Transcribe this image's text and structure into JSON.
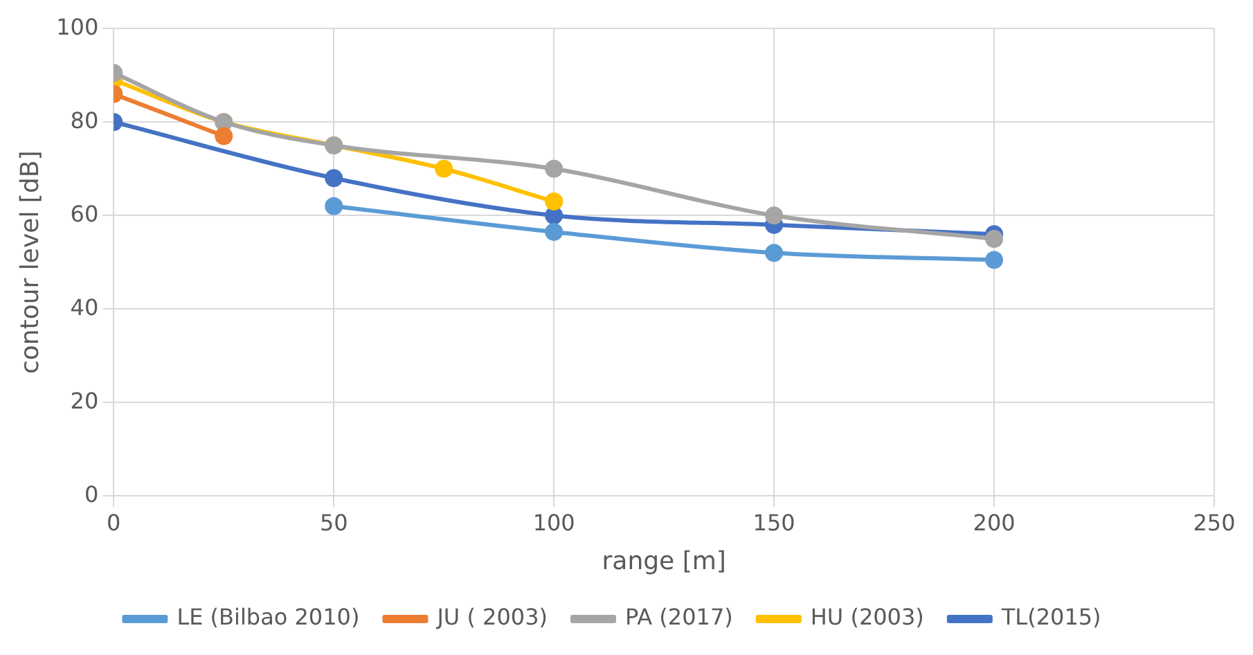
{
  "chart_data": {
    "type": "line",
    "xlabel": "range [m]",
    "ylabel": "contour level [dB]",
    "xlim": [
      0,
      250
    ],
    "xticks": [
      0,
      50,
      100,
      150,
      200,
      250
    ],
    "ylim": [
      0,
      100
    ],
    "yticks": [
      0,
      20,
      40,
      60,
      80,
      100
    ],
    "grid": true,
    "legend": "bottom",
    "marker": "circle",
    "line_style": "solid",
    "series": [
      {
        "name": "LE (Bilbao 2010)",
        "color": "#5b9bd5",
        "x": [
          50,
          100,
          150,
          200
        ],
        "values": [
          62,
          56.5,
          52,
          50.5
        ]
      },
      {
        "name": "JU ( 2003)",
        "color": "#ed7d31",
        "x": [
          0,
          25
        ],
        "values": [
          86,
          77
        ]
      },
      {
        "name": "PA (2017)",
        "color": "#a5a5a5",
        "x": [
          0,
          25,
          50,
          100,
          150,
          200
        ],
        "values": [
          90.5,
          80,
          75,
          70,
          60,
          55
        ]
      },
      {
        "name": "HU (2003)",
        "color": "#ffc000",
        "x": [
          0,
          25,
          50,
          75,
          100
        ],
        "values": [
          89,
          80,
          75,
          70,
          63
        ]
      },
      {
        "name": "TL(2015)",
        "color": "#4472c4",
        "x": [
          0,
          50,
          100,
          150,
          200
        ],
        "values": [
          80,
          68,
          60,
          58,
          56
        ]
      }
    ]
  }
}
